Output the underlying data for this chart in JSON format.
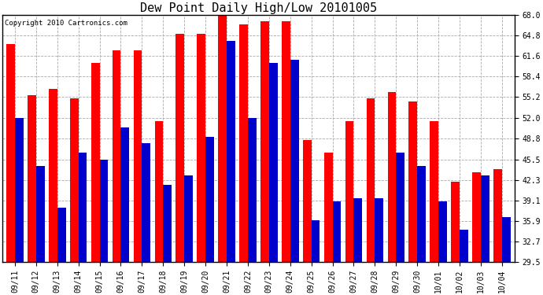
{
  "title": "Dew Point Daily High/Low 20101005",
  "copyright": "Copyright 2010 Cartronics.com",
  "dates": [
    "09/11",
    "09/12",
    "09/13",
    "09/14",
    "09/15",
    "09/16",
    "09/17",
    "09/18",
    "09/19",
    "09/20",
    "09/21",
    "09/22",
    "09/23",
    "09/24",
    "09/25",
    "09/26",
    "09/27",
    "09/28",
    "09/29",
    "09/30",
    "10/01",
    "10/02",
    "10/03",
    "10/04"
  ],
  "highs": [
    63.5,
    55.5,
    56.5,
    55.0,
    60.5,
    62.5,
    62.5,
    51.5,
    65.0,
    65.0,
    68.0,
    66.5,
    67.0,
    67.0,
    48.5,
    46.5,
    51.5,
    55.0,
    56.0,
    54.5,
    51.5,
    42.0,
    43.5,
    44.0
  ],
  "lows": [
    52.0,
    44.5,
    38.0,
    46.5,
    45.5,
    50.5,
    48.0,
    41.5,
    43.0,
    49.0,
    64.0,
    52.0,
    60.5,
    61.0,
    36.0,
    39.0,
    39.5,
    39.5,
    46.5,
    44.5,
    39.0,
    34.5,
    43.0,
    36.5
  ],
  "high_color": "#ff0000",
  "low_color": "#0000cc",
  "background_color": "#ffffff",
  "plot_bg_color": "#ffffff",
  "grid_color": "#aaaaaa",
  "ylim_min": 29.5,
  "ylim_max": 68.0,
  "yticks": [
    29.5,
    32.7,
    35.9,
    39.1,
    42.3,
    45.5,
    48.8,
    52.0,
    55.2,
    58.4,
    61.6,
    64.8,
    68.0
  ],
  "bar_width": 0.4,
  "title_fontsize": 11,
  "tick_fontsize": 7,
  "copyright_fontsize": 6.5
}
